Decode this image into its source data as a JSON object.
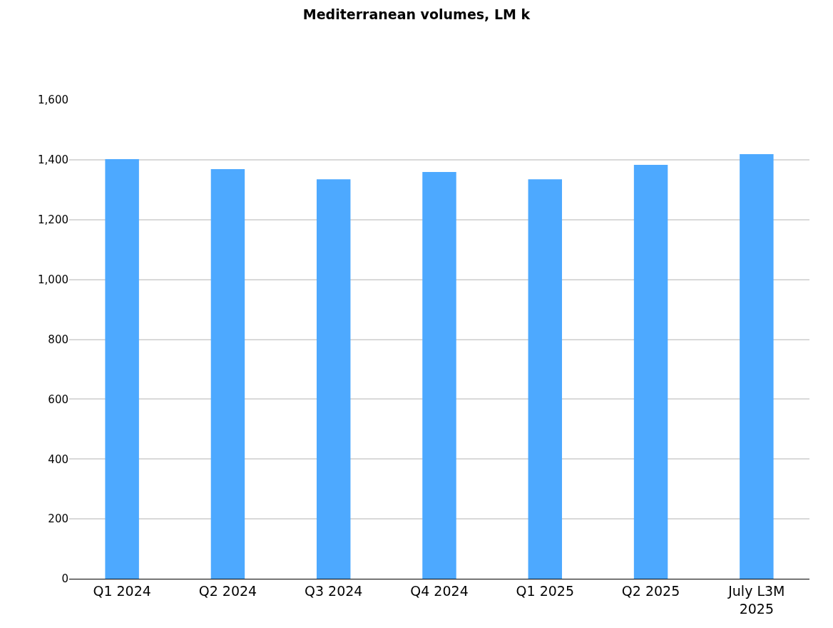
{
  "chart_data": {
    "type": "bar",
    "title": "Mediterranean volumes, LM k",
    "categories": [
      "Q1 2024",
      "Q2 2024",
      "Q3 2024",
      "Q4 2024",
      "Q1 2025",
      "Q2 2025",
      "July L3M\n2025"
    ],
    "values": [
      1402,
      1369,
      1335,
      1359,
      1335,
      1383,
      1419
    ],
    "color": "#4da9ff",
    "ylim": [
      0,
      1600
    ],
    "yticks": [
      {
        "value": 0,
        "label": "0"
      },
      {
        "value": 200,
        "label": "200"
      },
      {
        "value": 400,
        "label": "400"
      },
      {
        "value": 600,
        "label": "600"
      },
      {
        "value": 800,
        "label": "800"
      },
      {
        "value": 1000,
        "label": "1,000"
      },
      {
        "value": 1200,
        "label": "1,200"
      },
      {
        "value": 1400,
        "label": "1,400"
      },
      {
        "value": 1600,
        "label": "1,600"
      }
    ],
    "grid": "y"
  }
}
